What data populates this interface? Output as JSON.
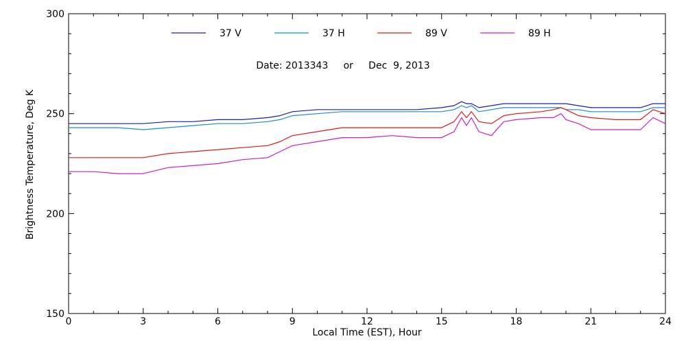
{
  "chart_data": {
    "type": "line",
    "title": "",
    "annotation": "Date: 2013343     or     Dec  9, 2013",
    "xlabel": "Local Time (EST), Hour",
    "ylabel": "Brightness Temperature, Deg K",
    "xlim": [
      0,
      24
    ],
    "ylim": [
      150,
      300
    ],
    "x_ticks": [
      0,
      3,
      6,
      9,
      12,
      15,
      18,
      21,
      24
    ],
    "y_ticks": [
      150,
      200,
      250,
      300
    ],
    "grid": false,
    "legend_position": "top",
    "x": [
      0,
      1,
      2,
      3,
      4,
      5,
      6,
      7,
      8,
      8.5,
      9,
      10,
      11,
      12,
      13,
      14,
      15,
      15.5,
      15.8,
      16,
      16.2,
      16.5,
      17,
      17.5,
      18,
      19,
      19.5,
      19.8,
      20,
      20.5,
      21,
      22,
      23,
      23.5,
      24
    ],
    "series": [
      {
        "name": "37 V",
        "color": "#1c1cb8",
        "values": [
          245,
          245,
          245,
          245,
          246,
          246,
          247,
          247,
          248,
          249,
          251,
          252,
          252,
          252,
          252,
          252,
          253,
          254,
          256,
          255,
          255,
          253,
          254,
          255,
          255,
          255,
          255,
          255,
          255,
          254,
          253,
          253,
          253,
          255,
          255
        ]
      },
      {
        "name": "37 H",
        "color": "#1a8cc8",
        "values": [
          243,
          243,
          243,
          242,
          243,
          244,
          245,
          245,
          246,
          247,
          249,
          250,
          251,
          251,
          251,
          251,
          251,
          252,
          254,
          253,
          254,
          251,
          252,
          253,
          253,
          253,
          253,
          253,
          252,
          252,
          251,
          251,
          251,
          253,
          253
        ]
      },
      {
        "name": "89 V",
        "color": "#e01818",
        "values": [
          228,
          228,
          228,
          228,
          230,
          231,
          232,
          233,
          234,
          236,
          239,
          241,
          243,
          243,
          243,
          243,
          243,
          246,
          251,
          248,
          251,
          246,
          245,
          249,
          250,
          251,
          252,
          253,
          252,
          249,
          248,
          247,
          247,
          252,
          250
        ]
      },
      {
        "name": "89 H",
        "color": "#c81ec8",
        "values": [
          221,
          221,
          220,
          220,
          223,
          224,
          225,
          227,
          228,
          231,
          234,
          236,
          238,
          238,
          239,
          238,
          238,
          241,
          248,
          244,
          248,
          241,
          239,
          246,
          247,
          248,
          248,
          250,
          247,
          245,
          242,
          242,
          242,
          248,
          245
        ]
      }
    ]
  }
}
